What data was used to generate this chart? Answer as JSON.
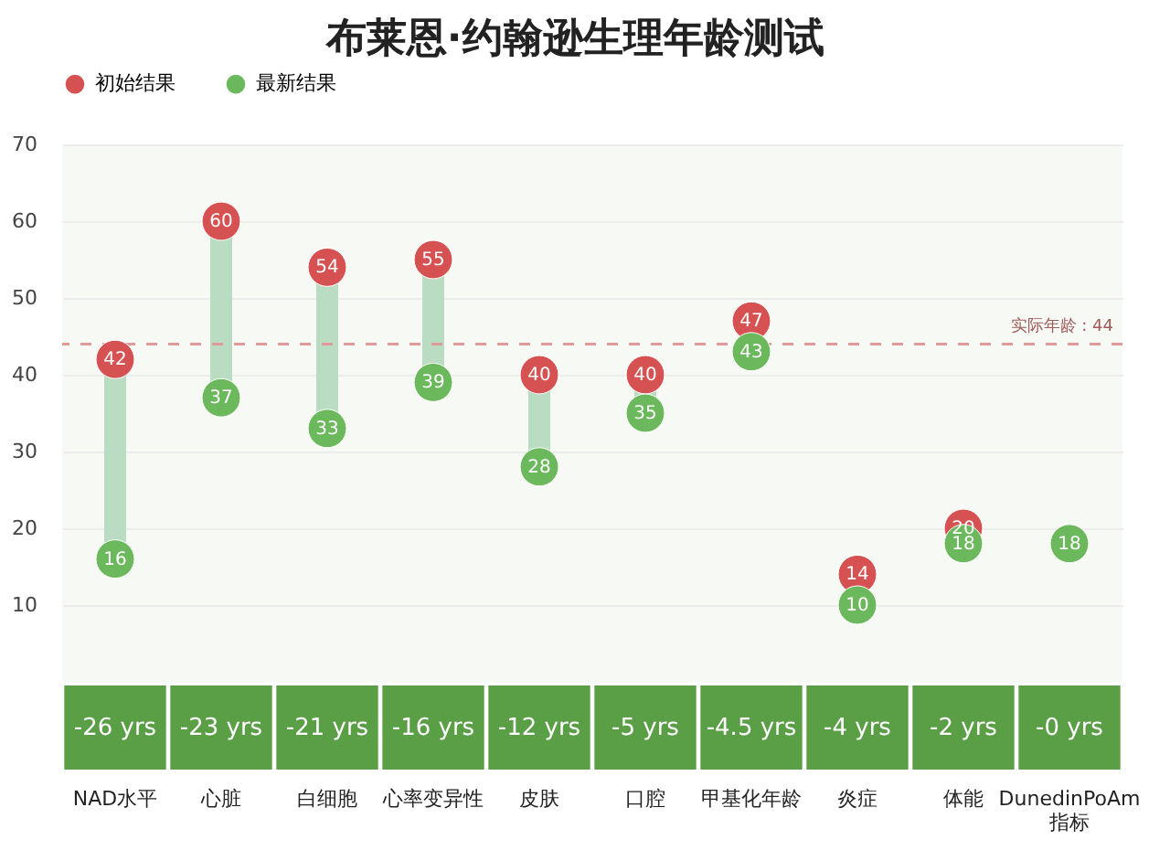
{
  "chart_data": {
    "type": "scatter",
    "title": "布莱恩·约翰逊生理年龄测试",
    "categories": [
      "NAD水平",
      "心脏",
      "白细胞",
      "心率变异性",
      "皮肤",
      "口腔",
      "甲基化年龄",
      "炎症",
      "体能",
      "DunedinPoAm 指标"
    ],
    "series": [
      {
        "name": "初始结果",
        "color": "#d65252",
        "values": [
          42,
          60,
          54,
          55,
          40,
          40,
          47,
          14,
          20,
          null
        ]
      },
      {
        "name": "最新结果",
        "color": "#6cb85c",
        "values": [
          16,
          37,
          33,
          39,
          28,
          35,
          43,
          10,
          18,
          18
        ]
      }
    ],
    "ylim": [
      0,
      70
    ],
    "yticks": [
      10,
      20,
      30,
      40,
      50,
      60,
      70
    ],
    "grid": "y",
    "legend": "top",
    "marker": "circle",
    "data_labels": true,
    "ref_lines": [
      {
        "axis": "y",
        "value": 44,
        "label": "实际年龄 : 44",
        "color": "#e09a9a",
        "line_style": "dashed"
      }
    ],
    "annotations": [
      "-26 yrs",
      "-23 yrs",
      "-21 yrs",
      "-16 yrs",
      "-12 yrs",
      "-5 yrs",
      "-4.5 yrs",
      "-4 yrs",
      "-2 yrs",
      "-0 yrs"
    ]
  }
}
